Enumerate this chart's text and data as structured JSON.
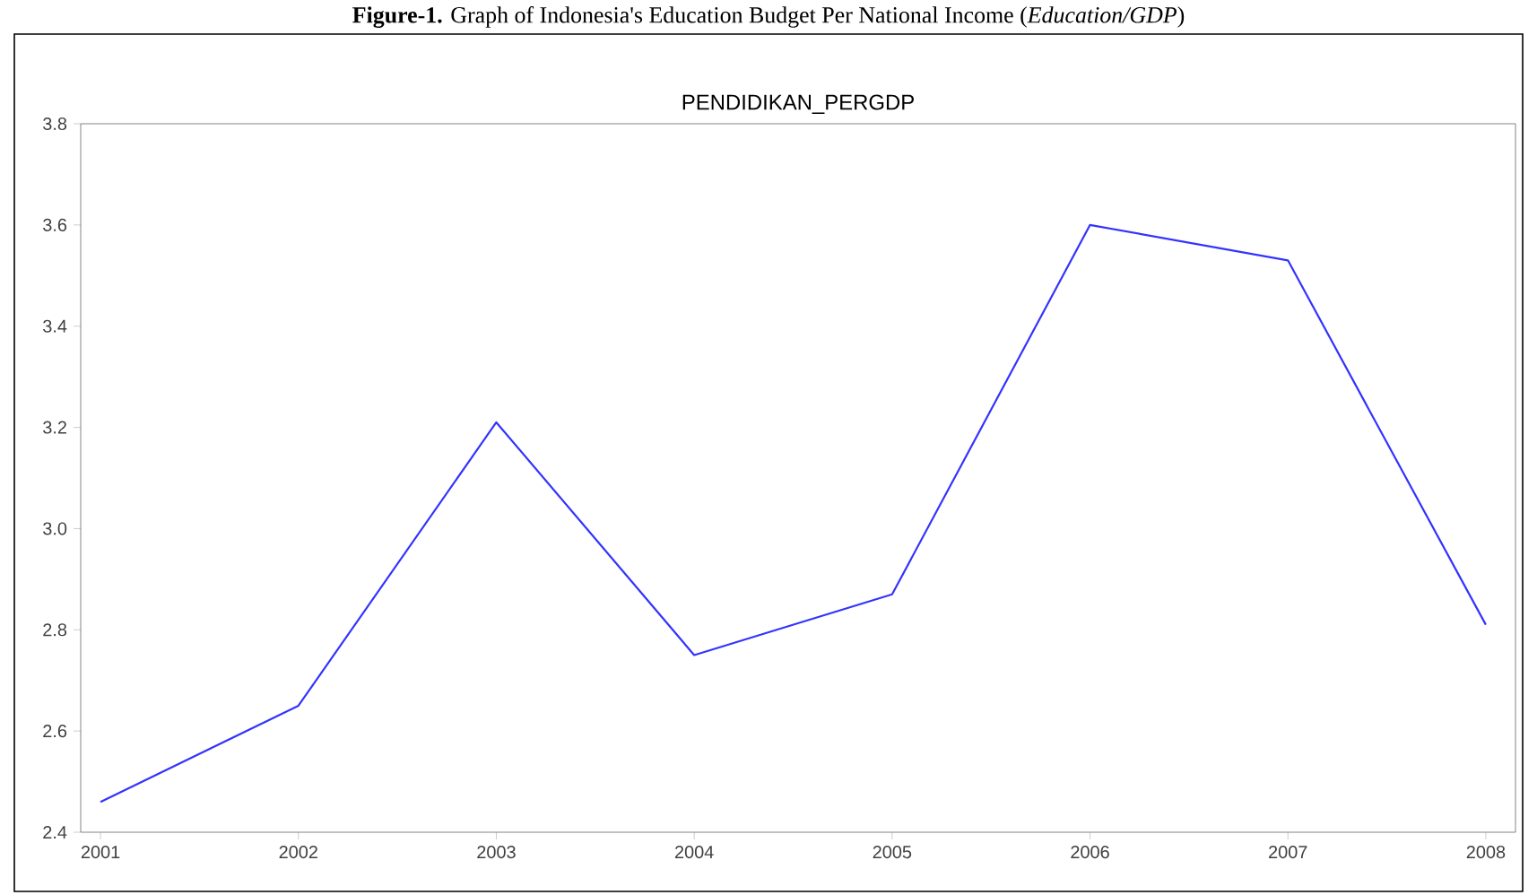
{
  "chart_data": {
    "type": "line",
    "title": "**Figure-1.** Graph of Indonesia's Education Budget Per National Income (*Education/GDP*)",
    "subtitle": "PENDIDIKAN_PERGDP",
    "categories": [
      "2001",
      "2002",
      "2003",
      "2004",
      "2005",
      "2006",
      "2007",
      "2008"
    ],
    "values": [
      2.46,
      2.65,
      3.21,
      2.75,
      2.87,
      3.6,
      3.53,
      2.81
    ],
    "color": "#3333ff",
    "ylim": [
      2.4,
      3.8
    ],
    "yticks": [
      2.4,
      2.6,
      2.8,
      {
        "value": 3.0,
        "label": "3.0"
      },
      3.2,
      3.4,
      3.6,
      3.8
    ],
    "grid": false,
    "marker": "none",
    "line_style": "solid"
  }
}
